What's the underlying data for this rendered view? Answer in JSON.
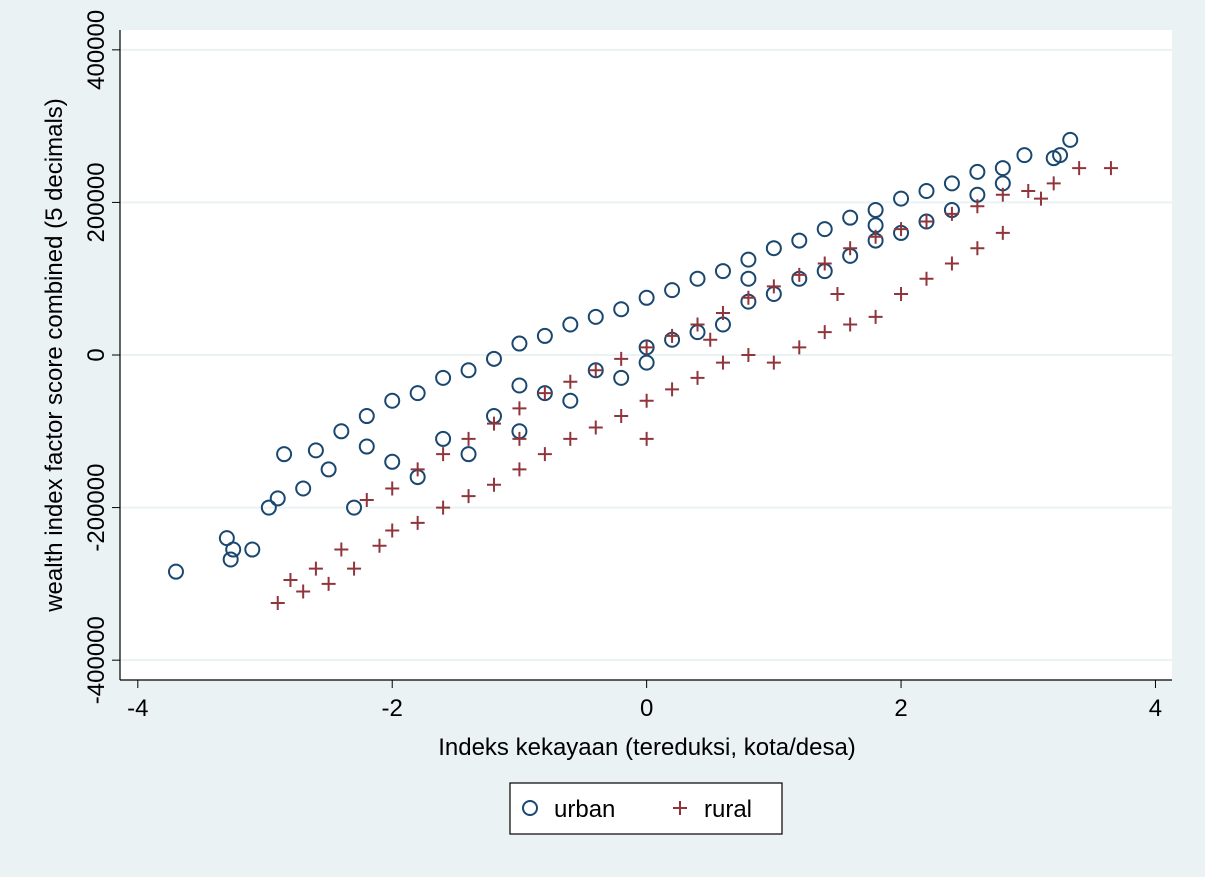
{
  "chart_data": {
    "type": "scatter",
    "x_label": "Indeks kekayaan (tereduksi, kota/desa)",
    "y_label": "wealth index factor score combined (5 decimals)",
    "xlim": [
      -4.14,
      4.13
    ],
    "xticks": [
      -4,
      -2,
      0,
      2,
      4
    ],
    "ylim": [
      -426000,
      426000
    ],
    "yticks": [
      -400000,
      -200000,
      0,
      200000,
      400000
    ],
    "grid": true,
    "legend": "bottom",
    "series": [
      {
        "name": "urban",
        "color": "#1a476f",
        "marker": "circle",
        "x": [
          -3.7,
          -3.27,
          -3.3,
          -3.25,
          -3.1,
          -2.97,
          -2.9,
          -2.85,
          -2.7,
          -2.6,
          -2.4,
          -2.5,
          -2.3,
          -2.2,
          -2.0,
          -2.0,
          -1.8,
          -1.8,
          -1.6,
          -1.6,
          -1.4,
          -1.4,
          -1.2,
          -1.2,
          -1.0,
          -1.0,
          -0.8,
          -0.8,
          -0.6,
          -0.6,
          -0.4,
          -0.4,
          -0.2,
          -0.2,
          0,
          0,
          0,
          0.2,
          0.2,
          0.4,
          0.4,
          0.6,
          0.6,
          0.8,
          0.8,
          1.0,
          1.0,
          1.2,
          1.2,
          1.4,
          1.4,
          1.6,
          1.6,
          1.8,
          1.8,
          2.0,
          2.0,
          2.2,
          2.2,
          2.4,
          2.4,
          2.6,
          2.6,
          2.8,
          2.8,
          2.97,
          3.2,
          3.25,
          3.33,
          -1.0,
          -2.2,
          0.8,
          1.8
        ],
        "values": [
          -284000,
          -268000,
          -240000,
          -255000,
          -255000,
          -200000,
          -188000,
          -130000,
          -175000,
          -125000,
          -100000,
          -150000,
          -200000,
          -80000,
          -60000,
          -140000,
          -50000,
          -160000,
          -30000,
          -110000,
          -20000,
          -130000,
          -5000,
          -80000,
          15000,
          -100000,
          25000,
          -50000,
          40000,
          -60000,
          50000,
          -20000,
          60000,
          -30000,
          75000,
          10000,
          -10000,
          85000,
          20000,
          100000,
          30000,
          110000,
          40000,
          125000,
          70000,
          140000,
          80000,
          150000,
          100000,
          165000,
          110000,
          180000,
          130000,
          190000,
          150000,
          205000,
          160000,
          215000,
          175000,
          225000,
          190000,
          240000,
          210000,
          245000,
          225000,
          262000,
          258000,
          262000,
          282000,
          -40000,
          -120000,
          100000,
          170000
        ]
      },
      {
        "name": "rural",
        "color": "#90353b",
        "marker": "plus",
        "x": [
          -2.9,
          -2.8,
          -2.7,
          -2.6,
          -2.5,
          -2.4,
          -2.3,
          -2.2,
          -2.1,
          -2.0,
          -2.0,
          -1.8,
          -1.8,
          -1.6,
          -1.6,
          -1.4,
          -1.4,
          -1.2,
          -1.2,
          -1.0,
          -1.0,
          -0.8,
          -0.8,
          -0.6,
          -0.6,
          -0.4,
          -0.4,
          -0.2,
          -0.2,
          0,
          0,
          0,
          0.2,
          0.2,
          0.4,
          0.4,
          0.6,
          0.6,
          0.8,
          0.8,
          1.0,
          1.0,
          1.2,
          1.2,
          1.4,
          1.4,
          1.6,
          1.6,
          1.8,
          1.8,
          2.0,
          2.0,
          2.2,
          2.2,
          2.4,
          2.4,
          2.6,
          2.6,
          2.8,
          2.8,
          3.0,
          3.1,
          3.2,
          3.4,
          3.65,
          -1.0,
          0.5,
          1.5
        ],
        "values": [
          -325000,
          -295000,
          -310000,
          -280000,
          -300000,
          -255000,
          -280000,
          -190000,
          -250000,
          -175000,
          -230000,
          -150000,
          -220000,
          -130000,
          -200000,
          -110000,
          -185000,
          -90000,
          -170000,
          -70000,
          -150000,
          -50000,
          -130000,
          -35000,
          -110000,
          -20000,
          -95000,
          -5000,
          -80000,
          10000,
          -60000,
          -110000,
          25000,
          -45000,
          40000,
          -30000,
          55000,
          -10000,
          75000,
          0,
          90000,
          -10000,
          105000,
          10000,
          120000,
          30000,
          140000,
          40000,
          155000,
          50000,
          165000,
          80000,
          175000,
          100000,
          185000,
          120000,
          195000,
          140000,
          210000,
          160000,
          215000,
          205000,
          225000,
          245000,
          245000,
          -110000,
          20000,
          80000
        ]
      }
    ]
  }
}
